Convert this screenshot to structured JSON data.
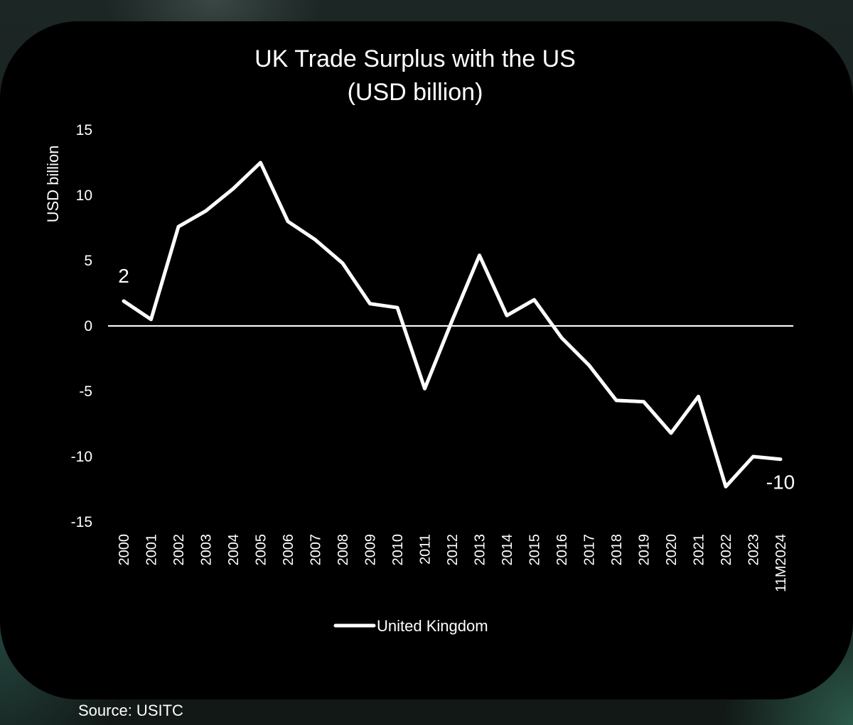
{
  "chart_data": {
    "type": "line",
    "title_line1": "UK Trade Surplus with the US",
    "title_line2": "(USD billion)",
    "ylabel": "USD billion",
    "xlabel": "",
    "ylim": [
      -15,
      15
    ],
    "yticks": [
      15,
      10,
      5,
      0,
      -5,
      -10,
      -15
    ],
    "categories": [
      "2000",
      "2001",
      "2002",
      "2003",
      "2004",
      "2005",
      "2006",
      "2007",
      "2008",
      "2009",
      "2010",
      "2011",
      "2012",
      "2013",
      "2014",
      "2015",
      "2016",
      "2017",
      "2018",
      "2019",
      "2020",
      "2021",
      "2022",
      "2023",
      "11M2024"
    ],
    "series": [
      {
        "name": "United Kingdom",
        "color": "#ffffff",
        "values": [
          1.9,
          0.5,
          7.6,
          8.8,
          10.5,
          12.5,
          8.0,
          6.6,
          4.8,
          1.7,
          1.4,
          -4.8,
          0.4,
          5.4,
          0.8,
          2.0,
          -0.9,
          -3.0,
          -5.7,
          -5.8,
          -8.2,
          -5.4,
          -12.3,
          -10.0,
          -10.2
        ]
      }
    ],
    "annotations": [
      {
        "text": "2",
        "category": "2000"
      },
      {
        "text": "-10",
        "category": "11M2024"
      }
    ],
    "legend": {
      "label": "United Kingdom",
      "placement": "bottom"
    },
    "grid": false,
    "zero_line": true
  },
  "source": "Source: USITC"
}
